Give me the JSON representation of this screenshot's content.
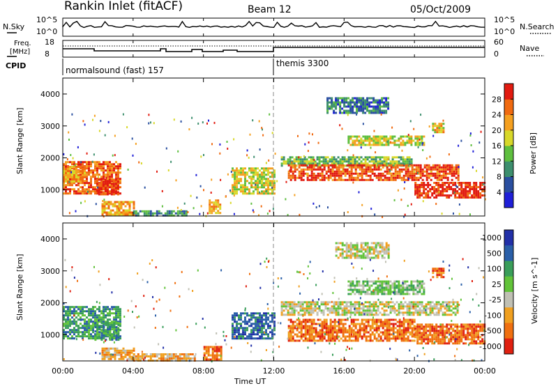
{
  "header": {
    "title": "Rankin Inlet (fitACF)",
    "beam": "Beam 12",
    "date": "05/Oct/2009"
  },
  "top_panels": {
    "nsky_label": "N.Sky",
    "nsearch_label": "N.Search",
    "log_tick_hi": "10^5",
    "log_tick_lo": "10^0",
    "freq_label": "Freq.",
    "freq_unit": "[MHz]",
    "freq_ticks": [
      "18",
      "8"
    ],
    "nave_label": "Nave",
    "nave_ticks": [
      "60",
      "0"
    ],
    "cpid_label": "CPID",
    "cpid_segments": [
      "normalsound (fast) 157",
      "themis 3300"
    ]
  },
  "colors": {
    "power": [
      "#1f1fd8",
      "#2a4fa0",
      "#3d8f6e",
      "#5fbf3f",
      "#d8d82a",
      "#f5a020",
      "#f06a10",
      "#e21b10"
    ],
    "velocity": [
      "#2230a8",
      "#2a5fa8",
      "#3a9e5a",
      "#62c33a",
      "#c0c0b4",
      "#f0a020",
      "#f07010",
      "#e02010"
    ],
    "ground_scatter": "#c0c0b4"
  },
  "chart_data": [
    {
      "type": "heatmap",
      "title": "Power",
      "ylabel": "Slant Range [km]",
      "xlabel": "Time UT",
      "ylim": [
        180,
        4500
      ],
      "x_ticks": [
        "00:00",
        "04:00",
        "08:00",
        "12:00",
        "16:00",
        "20:00",
        "00:00"
      ],
      "y_ticks": [
        "1000",
        "2000",
        "3000",
        "4000"
      ],
      "colorbar_label": "Power [dB]",
      "colorbar_ticks": [
        "4",
        "8",
        "12",
        "16",
        "20",
        "24",
        "28"
      ],
      "colorbar_range": [
        0,
        32
      ],
      "regions": [
        {
          "t0": 0.0,
          "t1": 3.3,
          "r0": 900,
          "r1": 1900,
          "level": 26
        },
        {
          "t0": 1.9,
          "t1": 3.1,
          "r0": 850,
          "r1": 1350,
          "level": 30
        },
        {
          "t0": 0.0,
          "t1": 1.2,
          "r0": 1250,
          "r1": 1750,
          "level": 22
        },
        {
          "t0": 2.2,
          "t1": 4.0,
          "r0": 250,
          "r1": 650,
          "level": 22
        },
        {
          "t0": 4.0,
          "t1": 7.0,
          "r0": 220,
          "r1": 360,
          "level": 10
        },
        {
          "t0": 8.3,
          "t1": 8.9,
          "r0": 250,
          "r1": 700,
          "level": 22
        },
        {
          "t0": 9.6,
          "t1": 12.0,
          "r0": 900,
          "r1": 1700,
          "level": 18
        },
        {
          "t0": 12.4,
          "t1": 19.8,
          "r0": 1750,
          "r1": 2050,
          "level": 14
        },
        {
          "t0": 12.8,
          "t1": 22.5,
          "r0": 1300,
          "r1": 1800,
          "level": 28
        },
        {
          "t0": 20.0,
          "t1": 24.0,
          "r0": 750,
          "r1": 1250,
          "level": 30
        },
        {
          "t0": 16.2,
          "t1": 20.5,
          "r0": 2400,
          "r1": 2700,
          "level": 18
        },
        {
          "t0": 15.0,
          "t1": 18.5,
          "r0": 3400,
          "r1": 3900,
          "level": 8
        },
        {
          "t0": 21.0,
          "t1": 21.6,
          "r0": 2800,
          "r1": 3100,
          "level": 20
        }
      ]
    },
    {
      "type": "heatmap",
      "title": "Velocity",
      "ylabel": "Slant Range [km]",
      "xlabel": "Time UT",
      "ylim": [
        180,
        4500
      ],
      "x_ticks": [
        "00:00",
        "04:00",
        "08:00",
        "12:00",
        "16:00",
        "20:00",
        "00:00"
      ],
      "y_ticks": [
        "1000",
        "2000",
        "3000",
        "4000"
      ],
      "colorbar_label": "Velocity [m s^-1]",
      "colorbar_ticks": [
        "1000",
        "500",
        "100",
        "25",
        "-25",
        "-100",
        "-500",
        "-1000"
      ],
      "regions": [
        {
          "t0": 0.0,
          "t1": 3.3,
          "r0": 900,
          "r1": 1900,
          "bin": 2
        },
        {
          "t0": 1.8,
          "t1": 3.2,
          "r0": 850,
          "r1": 1400,
          "bin": 2
        },
        {
          "t0": 2.2,
          "t1": 4.0,
          "r0": 250,
          "r1": 600,
          "bin": 5
        },
        {
          "t0": 4.0,
          "t1": 7.5,
          "r0": 220,
          "r1": 420,
          "bin": 5
        },
        {
          "t0": 8.0,
          "t1": 9.0,
          "r0": 250,
          "r1": 650,
          "bin": 6
        },
        {
          "t0": 9.6,
          "t1": 12.0,
          "r0": 900,
          "r1": 1700,
          "bin": 1
        },
        {
          "t0": 12.4,
          "t1": 22.5,
          "r0": 1600,
          "r1": 2050,
          "bin": 4
        },
        {
          "t0": 12.8,
          "t1": 20.0,
          "r0": 800,
          "r1": 1500,
          "bin": 6
        },
        {
          "t0": 20.0,
          "t1": 24.0,
          "r0": 700,
          "r1": 1350,
          "bin": 6
        },
        {
          "t0": 16.2,
          "t1": 20.5,
          "r0": 2300,
          "r1": 2700,
          "bin": 3
        },
        {
          "t0": 15.5,
          "t1": 18.5,
          "r0": 3400,
          "r1": 3900,
          "bin": 4
        },
        {
          "t0": 21.0,
          "t1": 21.7,
          "r0": 2800,
          "r1": 3100,
          "bin": 6
        }
      ]
    }
  ]
}
